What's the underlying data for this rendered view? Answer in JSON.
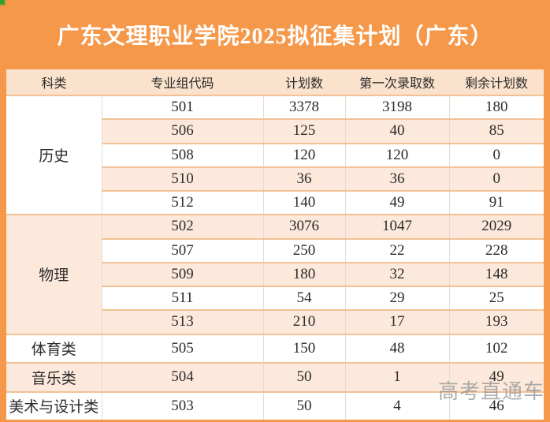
{
  "page": {
    "title": "广东文理职业学院2025拟征集计划（广东）",
    "watermark": "高考直通车",
    "colors": {
      "frame_orange": "#F6984A",
      "header_bg": "#FAE2CC",
      "alt_row_bg": "#FCE9DB",
      "row_border": "#F2C296",
      "text": "#2B2B2B",
      "watermark_gray": "#8F8F8F",
      "corner_green": "#2FA12F"
    }
  },
  "table": {
    "headers": [
      "科类",
      "专业组代码",
      "计划数",
      "第一次录取数",
      "剩余计划数"
    ],
    "groups": [
      {
        "label": "历史",
        "rows": [
          [
            "501",
            "3378",
            "3198",
            "180"
          ],
          [
            "506",
            "125",
            "40",
            "85"
          ],
          [
            "508",
            "120",
            "120",
            "0"
          ],
          [
            "510",
            "36",
            "36",
            "0"
          ],
          [
            "512",
            "140",
            "49",
            "91"
          ]
        ]
      },
      {
        "label": "物理",
        "rows": [
          [
            "502",
            "3076",
            "1047",
            "2029"
          ],
          [
            "507",
            "250",
            "22",
            "228"
          ],
          [
            "509",
            "180",
            "32",
            "148"
          ],
          [
            "511",
            "54",
            "29",
            "25"
          ],
          [
            "513",
            "210",
            "17",
            "193"
          ]
        ]
      },
      {
        "label": "体育类",
        "rows": [
          [
            "505",
            "150",
            "48",
            "102"
          ]
        ]
      },
      {
        "label": "音乐类",
        "rows": [
          [
            "504",
            "50",
            "1",
            "49"
          ]
        ]
      },
      {
        "label": "美术与设计类",
        "rows": [
          [
            "503",
            "50",
            "4",
            "46"
          ]
        ]
      }
    ]
  }
}
